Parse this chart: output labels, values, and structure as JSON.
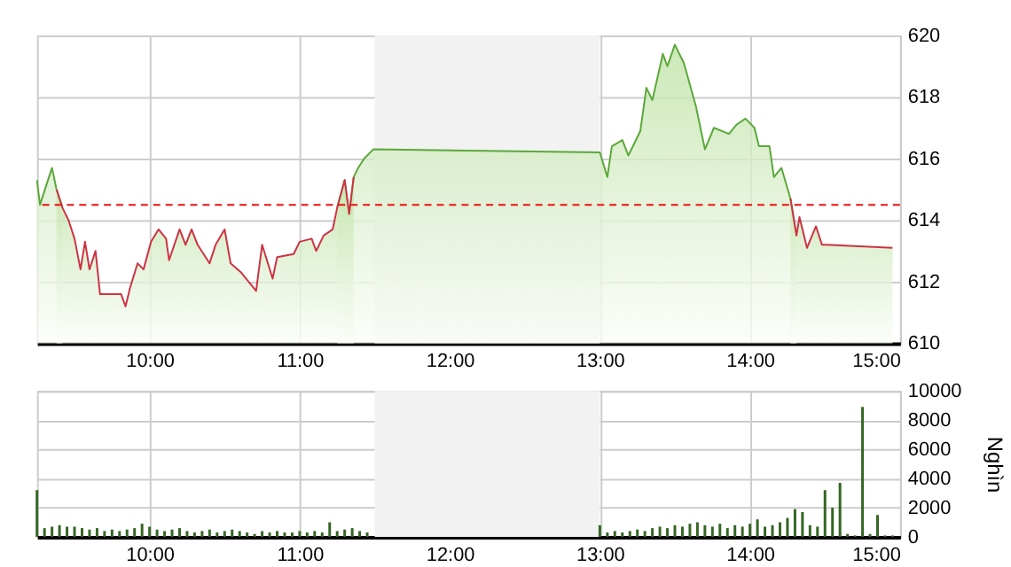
{
  "chart_data": [
    {
      "type": "area",
      "xlim": [
        9.25,
        15
      ],
      "xticks": [
        {
          "value": 10,
          "label": "10:00"
        },
        {
          "value": 11,
          "label": "11:00"
        },
        {
          "value": 12,
          "label": "12:00"
        },
        {
          "value": 13,
          "label": "13:00"
        },
        {
          "value": 14,
          "label": "14:00"
        },
        {
          "value": 15,
          "label": "15:00"
        }
      ],
      "ylim": [
        610,
        620
      ],
      "yticks": [
        610,
        612,
        614,
        616,
        618,
        620
      ],
      "grid": true,
      "x": [
        9.25,
        9.27,
        9.35,
        9.38,
        9.42,
        9.46,
        9.5,
        9.54,
        9.57,
        9.6,
        9.64,
        9.67,
        9.72,
        9.81,
        9.84,
        9.87,
        9.92,
        9.96,
        10.01,
        10.06,
        10.11,
        10.13,
        10.2,
        10.24,
        10.28,
        10.32,
        10.4,
        10.44,
        10.5,
        10.54,
        10.61,
        10.71,
        10.75,
        10.82,
        10.85,
        10.96,
        11.0,
        11.08,
        11.11,
        11.16,
        11.22,
        11.25,
        11.3,
        11.33,
        11.36,
        11.39,
        11.43,
        11.49,
        13.0,
        13.05,
        13.08,
        13.15,
        13.19,
        13.27,
        13.31,
        13.35,
        13.42,
        13.45,
        13.5,
        13.56,
        13.64,
        13.7,
        13.76,
        13.86,
        13.91,
        13.97,
        14.03,
        14.06,
        14.13,
        14.16,
        14.21,
        14.27,
        14.31,
        14.33,
        14.38,
        14.44,
        14.48,
        14.51,
        14.95
      ],
      "series": [
        {
          "color": "#5ba83a",
          "values": [
            615.3,
            614.5,
            615.7,
            615.0,
            614.4,
            null,
            null,
            null,
            null,
            null,
            null,
            null,
            null,
            null,
            null,
            null,
            null,
            null,
            null,
            null,
            null,
            null,
            null,
            null,
            null,
            null,
            null,
            null,
            null,
            null,
            null,
            null,
            null,
            null,
            null,
            null,
            null,
            null,
            null,
            null,
            null,
            614.4,
            615.3,
            614.2,
            615.4,
            615.7,
            616.0,
            616.3,
            616.2,
            615.4,
            616.4,
            616.6,
            616.1,
            616.9,
            618.3,
            617.9,
            619.4,
            619.0,
            619.7,
            619.1,
            617.7,
            616.3,
            617.0,
            616.8,
            617.1,
            617.3,
            617.0,
            616.4,
            616.4,
            615.4,
            615.7,
            614.7,
            613.5,
            null,
            null,
            null,
            null,
            null,
            null
          ]
        },
        {
          "color": "#cc3344",
          "values": [
            null,
            null,
            null,
            615.0,
            614.4,
            614.0,
            613.4,
            612.4,
            613.3,
            612.4,
            613.0,
            611.6,
            611.6,
            611.6,
            611.2,
            611.8,
            612.6,
            612.4,
            613.3,
            613.7,
            613.4,
            612.7,
            613.7,
            613.2,
            613.7,
            613.2,
            612.6,
            613.2,
            613.7,
            612.6,
            612.3,
            611.7,
            613.2,
            612.1,
            612.8,
            612.9,
            613.3,
            613.4,
            613.0,
            613.5,
            613.7,
            614.4,
            615.3,
            614.2,
            615.4,
            null,
            null,
            null,
            null,
            null,
            null,
            null,
            null,
            null,
            null,
            null,
            null,
            null,
            null,
            null,
            null,
            null,
            null,
            null,
            null,
            null,
            null,
            null,
            null,
            null,
            null,
            614.7,
            613.5,
            614.1,
            613.1,
            613.8,
            613.2,
            613.2,
            613.1
          ]
        }
      ],
      "ref_lines": [
        {
          "axis": "y",
          "value": 614.5,
          "color": "#ee1111",
          "line_style": "dashed"
        }
      ],
      "bands": [
        {
          "axis": "x",
          "from": 11.5,
          "to": 13,
          "color": "#f2f2f2"
        }
      ]
    },
    {
      "type": "bar",
      "ylabel": "Nghìn",
      "xlim": [
        9.25,
        15
      ],
      "xticks": [
        {
          "value": 10,
          "label": "10:00"
        },
        {
          "value": 11,
          "label": "11:00"
        },
        {
          "value": 12,
          "label": "12:00"
        },
        {
          "value": 13,
          "label": "13:00"
        },
        {
          "value": 14,
          "label": "14:00"
        },
        {
          "value": 15,
          "label": "15:00"
        }
      ],
      "ylim": [
        0,
        10000
      ],
      "yticks": [
        0,
        2000,
        4000,
        6000,
        8000,
        10000
      ],
      "grid": true,
      "x": [
        9.25,
        9.3,
        9.35,
        9.4,
        9.45,
        9.5,
        9.55,
        9.6,
        9.65,
        9.7,
        9.75,
        9.8,
        9.85,
        9.9,
        9.95,
        10.0,
        10.05,
        10.1,
        10.15,
        10.2,
        10.25,
        10.3,
        10.35,
        10.4,
        10.45,
        10.5,
        10.55,
        10.6,
        10.65,
        10.7,
        10.75,
        10.8,
        10.85,
        10.9,
        10.95,
        11.0,
        11.05,
        11.1,
        11.15,
        11.2,
        11.25,
        11.3,
        11.35,
        11.4,
        11.45,
        13.0,
        13.05,
        13.1,
        13.15,
        13.2,
        13.25,
        13.3,
        13.35,
        13.4,
        13.45,
        13.5,
        13.55,
        13.6,
        13.65,
        13.7,
        13.75,
        13.8,
        13.85,
        13.9,
        13.95,
        14.0,
        14.05,
        14.1,
        14.15,
        14.2,
        14.25,
        14.3,
        14.35,
        14.4,
        14.45,
        14.5,
        14.55,
        14.6,
        14.65,
        14.7,
        14.75,
        14.8,
        14.85,
        14.9,
        14.95
      ],
      "series": [
        {
          "color": "#336622",
          "values": [
            3200,
            600,
            700,
            800,
            700,
            700,
            600,
            500,
            600,
            400,
            500,
            400,
            500,
            600,
            900,
            700,
            500,
            400,
            500,
            600,
            400,
            300,
            400,
            500,
            300,
            400,
            500,
            400,
            300,
            200,
            400,
            300,
            400,
            300,
            300,
            400,
            300,
            400,
            300,
            1000,
            400,
            500,
            600,
            400,
            300,
            800,
            300,
            400,
            300,
            400,
            500,
            400,
            600,
            700,
            600,
            800,
            700,
            900,
            1000,
            800,
            700,
            900,
            600,
            800,
            700,
            900,
            1200,
            700,
            800,
            1000,
            1300,
            1900,
            1700,
            800,
            700,
            3200,
            2000,
            3700,
            200,
            100,
            8900,
            200,
            1500,
            100,
            100
          ]
        }
      ],
      "bands": [
        {
          "axis": "x",
          "from": 11.5,
          "to": 13,
          "color": "#f2f2f2"
        }
      ]
    }
  ]
}
